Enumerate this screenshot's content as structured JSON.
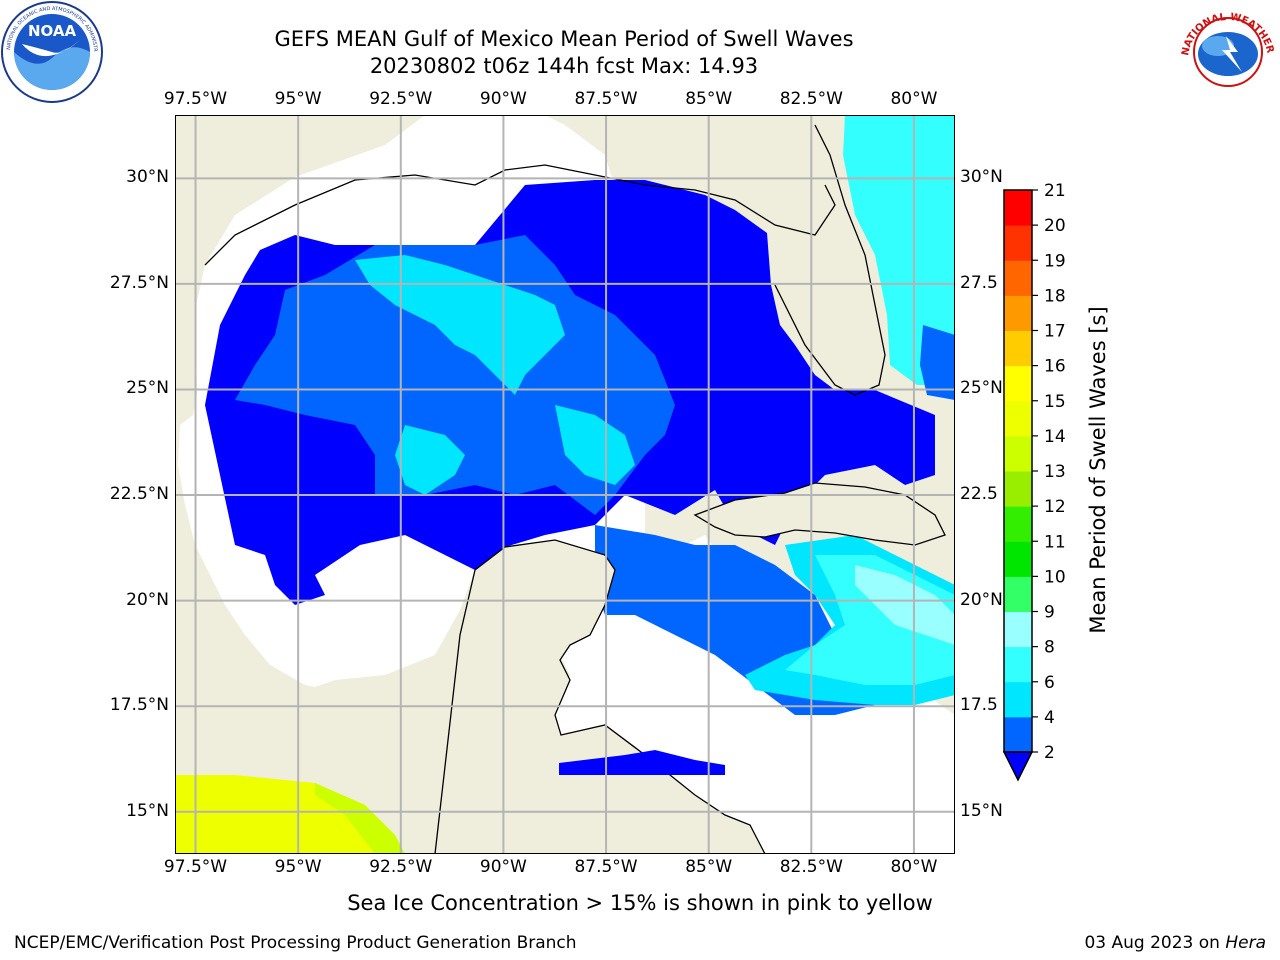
{
  "header": {
    "title_line1": "GEFS MEAN Gulf of Mexico Mean Period of Swell Waves",
    "title_line2": "20230802 t06z 144h fcst   Max: 14.93"
  },
  "logos": {
    "left": "NOAA",
    "left_ring_text": "NATIONAL OCEANIC AND ATMOSPHERIC ADMINISTRATION · U.S. DEPARTMENT OF COMMERCE",
    "right_ring_text": "NATIONAL WEATHER SERVICE"
  },
  "map": {
    "lon_ticks": [
      "97.5°W",
      "95°W",
      "92.5°W",
      "90°W",
      "87.5°W",
      "85°W",
      "82.5°W",
      "80°W"
    ],
    "lat_ticks_left": [
      "30°N",
      "27.5°N",
      "25°N",
      "22.5°N",
      "20°N",
      "17.5°N",
      "15°N"
    ],
    "lat_ticks_right": [
      "30°N",
      "27.5",
      "25°N",
      "22.5",
      "20°N",
      "17.5",
      "15°N"
    ],
    "lon_range": [
      -98,
      -79
    ],
    "lat_range": [
      14,
      31.5
    ],
    "colors": {
      "land": "#efeedc",
      "no_data": "#ffffff",
      "grid": "#b4b4b4",
      "coast": "#000000"
    }
  },
  "colorbar": {
    "label": "Mean Period of Swell Waves [s]",
    "levels": [
      "2",
      "4",
      "6",
      "8",
      "9",
      "10",
      "11",
      "12",
      "13",
      "14",
      "15",
      "16",
      "17",
      "18",
      "19",
      "20",
      "21"
    ],
    "colors": [
      "#0066ff",
      "#00e6ff",
      "#33ffff",
      "#99ffff",
      "#33ff66",
      "#00e600",
      "#33ee00",
      "#99ee00",
      "#ccff00",
      "#eeff00",
      "#ffff00",
      "#ffcc00",
      "#ff9900",
      "#ff6600",
      "#ff3300",
      "#ff0000"
    ],
    "extend_color": "#0000ff"
  },
  "subtitle": "Sea Ice Concentration > 15% is shown in pink to yellow",
  "footer": {
    "left": "NCEP/EMC/Verification Post Processing Product Generation Branch",
    "date": "03 Aug 2023 on",
    "host": "Hera"
  }
}
